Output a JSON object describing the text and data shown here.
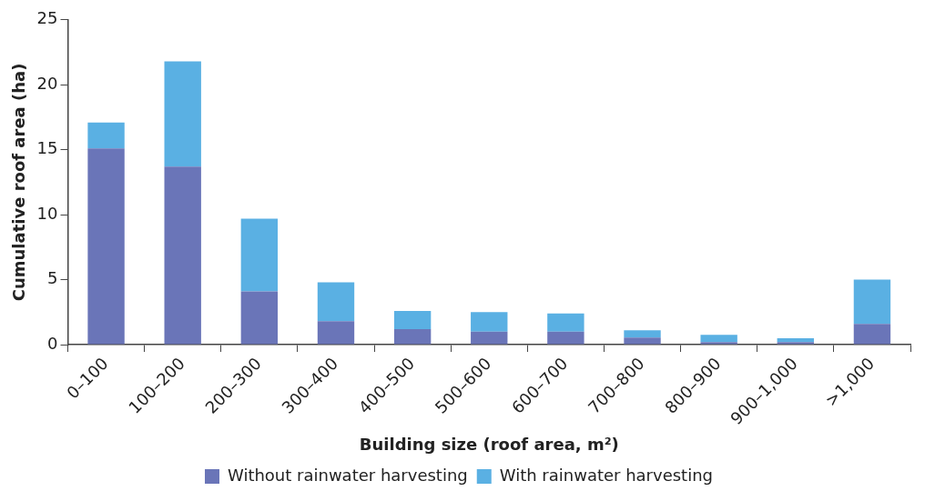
{
  "chart_data": {
    "type": "bar",
    "stacked": true,
    "xlabel": "Building size (roof area, m²)",
    "ylabel": "Cumulative roof area (ha)",
    "categories": [
      "0–100",
      "100–200",
      "200–300",
      "300–400",
      "400–500",
      "500–600",
      "600–700",
      "700–800",
      "800–900",
      "900–1,000",
      ">1,000"
    ],
    "series": [
      {
        "name": "Without rainwater harvesting",
        "color": "#6a75b8",
        "values": [
          15.1,
          13.7,
          4.1,
          1.8,
          1.2,
          1.0,
          1.0,
          0.55,
          0.2,
          0.2,
          1.6
        ]
      },
      {
        "name": "With rainwater harvesting",
        "color": "#5ab0e3",
        "values": [
          2.0,
          8.1,
          5.6,
          3.0,
          1.4,
          1.5,
          1.4,
          0.55,
          0.55,
          0.3,
          3.4
        ]
      }
    ],
    "ylim": [
      0,
      25
    ],
    "yticks": [
      0,
      5,
      10,
      15,
      20,
      25
    ],
    "grid": false,
    "legend": "bottom"
  }
}
